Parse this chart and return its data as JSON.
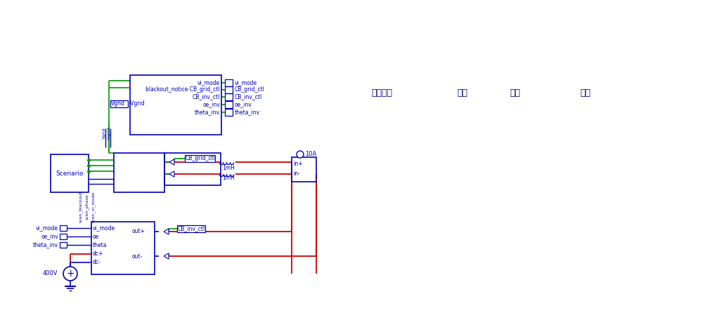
{
  "bg": "#ffffff",
  "blue": "#0000bb",
  "green": "#009900",
  "red": "#cc0000",
  "lc": "#000080",
  "figsize": [
    10.23,
    4.66
  ],
  "dpi": 100,
  "korean": {
    "k1": "계통연계",
    "k2": "정지",
    "k3": "중첩",
    "k4": "종료"
  }
}
